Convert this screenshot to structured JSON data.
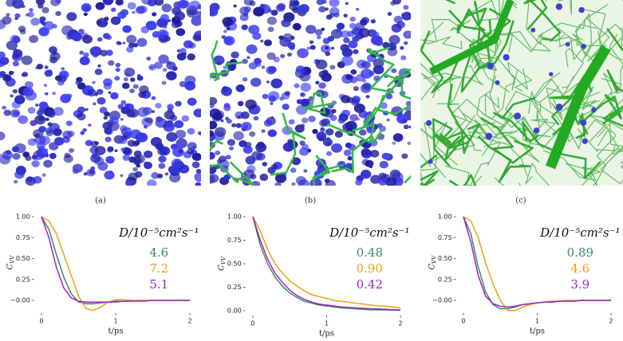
{
  "panels": [
    {
      "caption": "(a)"
    },
    {
      "caption": "(b)"
    },
    {
      "caption": "(c)"
    }
  ],
  "chart_data": [
    {
      "type": "line",
      "xlabel": "t/ps",
      "ylabel": "C",
      "ylabel_subscript": "VV",
      "legend_title": "D/10⁻⁵cm²s⁻¹",
      "x": [
        0,
        0.1,
        0.2,
        0.3,
        0.4,
        0.5,
        0.6,
        0.7,
        0.8,
        0.9,
        1.0,
        1.1,
        1.2,
        1.3,
        1.4,
        1.5,
        1.6,
        1.7,
        1.8,
        1.9,
        2.0
      ],
      "xlim": [
        -0.1,
        2.1
      ],
      "xticks": [
        0,
        1,
        2
      ],
      "ylim": [
        -0.15,
        1.05
      ],
      "yticks": [
        {
          "value": 0,
          "label": "−0.00"
        },
        {
          "value": 0.25,
          "label": "0.25"
        },
        {
          "value": 0.5,
          "label": "0.50"
        },
        {
          "value": 0.75,
          "label": "0.75"
        },
        {
          "value": 1,
          "label": "1.00"
        }
      ],
      "series": [
        {
          "name": "4.6",
          "color": "#3a8a5a",
          "values": [
            1,
            0.85,
            0.55,
            0.28,
            0.08,
            -0.02,
            -0.04,
            -0.04,
            -0.03,
            -0.02,
            -0.01,
            -0.01,
            -0.01,
            0,
            0,
            0,
            0,
            0,
            0,
            0,
            0
          ]
        },
        {
          "name": "7.2",
          "color": "#f0a010",
          "values": [
            1,
            0.95,
            0.8,
            0.55,
            0.3,
            0.05,
            -0.1,
            -0.12,
            -0.08,
            -0.02,
            0.01,
            0.01,
            0,
            0,
            0,
            0,
            0,
            0,
            0,
            0,
            0
          ]
        },
        {
          "name": "5.1",
          "color": "#a020d0",
          "values": [
            1,
            0.75,
            0.4,
            0.15,
            0.03,
            -0.01,
            -0.02,
            -0.02,
            -0.02,
            -0.02,
            -0.02,
            -0.01,
            -0.01,
            -0.01,
            -0.01,
            0,
            0,
            0,
            0,
            0,
            0
          ]
        }
      ]
    },
    {
      "type": "line",
      "xlabel": "t/ps",
      "ylabel": "C",
      "ylabel_subscript": "VV",
      "legend_title": "D/10⁻⁵cm²s⁻¹",
      "x": [
        0,
        0.1,
        0.2,
        0.3,
        0.4,
        0.5,
        0.6,
        0.7,
        0.8,
        0.9,
        1.0,
        1.1,
        1.2,
        1.3,
        1.4,
        1.5,
        1.6,
        1.7,
        1.8,
        1.9,
        2.0
      ],
      "xlim": [
        -0.1,
        2.1
      ],
      "xticks": [
        0,
        1,
        2
      ],
      "ylim": [
        -0.05,
        1.05
      ],
      "yticks": [
        {
          "value": 0,
          "label": "0.00"
        },
        {
          "value": 0.25,
          "label": "0.25"
        },
        {
          "value": 0.5,
          "label": "0.50"
        },
        {
          "value": 0.75,
          "label": "0.75"
        },
        {
          "value": 1,
          "label": "1.00"
        }
      ],
      "series": [
        {
          "name": "0.48",
          "color": "#3a8a5a",
          "values": [
            1,
            0.7,
            0.5,
            0.36,
            0.26,
            0.19,
            0.14,
            0.1,
            0.08,
            0.06,
            0.05,
            0.04,
            0.03,
            0.025,
            0.02,
            0.015,
            0.01,
            0.01,
            0.008,
            0.006,
            0.005
          ]
        },
        {
          "name": "0.90",
          "color": "#f0a010",
          "values": [
            1,
            0.85,
            0.65,
            0.5,
            0.4,
            0.32,
            0.26,
            0.21,
            0.17,
            0.15,
            0.13,
            0.11,
            0.1,
            0.09,
            0.08,
            0.07,
            0.06,
            0.05,
            0.05,
            0.04,
            0.03
          ]
        },
        {
          "name": "0.42",
          "color": "#a020d0",
          "values": [
            1,
            0.75,
            0.55,
            0.4,
            0.3,
            0.22,
            0.16,
            0.12,
            0.09,
            0.07,
            0.06,
            0.05,
            0.04,
            0.035,
            0.03,
            0.025,
            0.02,
            0.02,
            0.015,
            0.01,
            0.01
          ]
        }
      ]
    },
    {
      "type": "line",
      "xlabel": "t/ps",
      "ylabel": "C",
      "ylabel_subscript": "VV",
      "legend_title": "D/10⁻⁵cm²s⁻¹",
      "x": [
        0,
        0.1,
        0.2,
        0.3,
        0.4,
        0.5,
        0.6,
        0.7,
        0.8,
        0.9,
        1.0,
        1.1,
        1.2,
        1.3,
        1.4,
        1.5,
        1.6,
        1.7,
        1.8,
        1.9,
        2.0
      ],
      "xlim": [
        -0.1,
        2.1
      ],
      "xticks": [
        0,
        1,
        2
      ],
      "ylim": [
        -0.15,
        1.05
      ],
      "yticks": [
        {
          "value": 0,
          "label": "−0.00"
        },
        {
          "value": 0.25,
          "label": "0.25"
        },
        {
          "value": 0.5,
          "label": "0.50"
        },
        {
          "value": 0.75,
          "label": "0.75"
        },
        {
          "value": 1,
          "label": "1.00"
        }
      ],
      "series": [
        {
          "name": "0.89",
          "color": "#3a8a5a",
          "values": [
            1,
            0.8,
            0.4,
            0.1,
            -0.05,
            -0.1,
            -0.1,
            -0.08,
            -0.05,
            -0.04,
            -0.03,
            -0.02,
            -0.02,
            -0.01,
            -0.01,
            -0.01,
            0,
            0,
            0,
            0,
            0
          ]
        },
        {
          "name": "4.6",
          "color": "#f0a010",
          "values": [
            1,
            0.95,
            0.75,
            0.45,
            0.2,
            0,
            -0.12,
            -0.12,
            -0.08,
            -0.05,
            -0.03,
            -0.02,
            -0.01,
            -0.01,
            0,
            0,
            0,
            0,
            0,
            0,
            0
          ]
        },
        {
          "name": "3.9",
          "color": "#a020d0",
          "values": [
            1,
            0.7,
            0.3,
            0.05,
            -0.04,
            -0.07,
            -0.08,
            -0.07,
            -0.05,
            -0.04,
            -0.03,
            -0.02,
            -0.02,
            -0.01,
            -0.01,
            -0.01,
            0,
            0,
            0,
            0,
            0
          ]
        }
      ]
    }
  ]
}
